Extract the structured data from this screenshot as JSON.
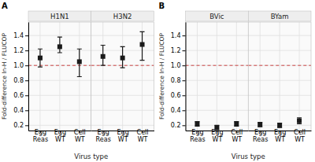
{
  "chart_data": [
    {
      "type": "point",
      "title": "H1N1",
      "categories": [
        "Egg\nReas",
        "Egg\nWT",
        "Cell\nWT"
      ],
      "values": [
        1.1,
        1.25,
        1.05
      ],
      "ci_low": [
        0.98,
        1.17,
        0.85
      ],
      "ci_high": [
        1.22,
        1.38,
        1.22
      ],
      "color": "#1a1a1a",
      "marker": "square",
      "ylim": [
        0.13,
        1.58
      ],
      "yticks": [
        0.2,
        0.4,
        0.6,
        0.8,
        {
          "value": 1.0,
          "label": "1.0"
        },
        1.2,
        1.4
      ],
      "grid": true,
      "ylabel": "Fold-difference In-H / FLUCOP",
      "xlabel": "Virus type",
      "annotations": [
        {
          "text": "A"
        }
      ],
      "reference_line": {
        "value": 1.0,
        "color": "#cc4444",
        "line_style": "dashed"
      }
    },
    {
      "type": "point",
      "title": "H3N2",
      "categories": [
        "Egg\nReas",
        "Egg\nWT",
        "Cell\nWT"
      ],
      "values": [
        1.12,
        1.1,
        1.28
      ],
      "ci_low": [
        1.0,
        0.97,
        1.07
      ],
      "ci_high": [
        1.27,
        1.25,
        1.45
      ],
      "color": "#1a1a1a",
      "marker": "square",
      "ylim": [
        0.13,
        1.58
      ],
      "yticks": [
        0.2,
        0.4,
        0.6,
        0.8,
        {
          "value": 1.0,
          "label": "1.0"
        },
        1.2,
        1.4
      ],
      "grid": true,
      "tick_labels": "x",
      "reference_line": {
        "value": 1.0,
        "color": "#cc4444",
        "line_style": "dashed"
      }
    },
    {
      "type": "point",
      "title": "BVic",
      "categories": [
        "Egg\nReas",
        "Egg\nWT",
        "Cell\nWT"
      ],
      "values": [
        0.22,
        0.17,
        0.22
      ],
      "ci_low": [
        0.19,
        0.14,
        0.19
      ],
      "ci_high": [
        0.25,
        0.2,
        0.25
      ],
      "color": "#1a1a1a",
      "marker": "square",
      "ylim": [
        0.13,
        1.58
      ],
      "yticks": [
        0.2,
        0.4,
        0.6,
        0.8,
        {
          "value": 1.0,
          "label": "1.0"
        },
        1.2,
        1.4
      ],
      "grid": true,
      "ylabel": "Fold-difference In-H / FLUCOP",
      "xlabel": "Virus type",
      "annotations": [
        {
          "text": "B"
        }
      ],
      "reference_line": {
        "value": 1.0,
        "color": "#cc4444",
        "line_style": "dashed"
      }
    },
    {
      "type": "point",
      "title": "BYam",
      "categories": [
        "Egg\nReas",
        "Egg\nWT",
        "Cell\nWT"
      ],
      "values": [
        0.21,
        0.2,
        0.26
      ],
      "ci_low": [
        0.18,
        0.17,
        0.22
      ],
      "ci_high": [
        0.24,
        0.23,
        0.3
      ],
      "color": "#1a1a1a",
      "marker": "square",
      "ylim": [
        0.13,
        1.58
      ],
      "yticks": [
        0.2,
        0.4,
        0.6,
        0.8,
        {
          "value": 1.0,
          "label": "1.0"
        },
        1.2,
        1.4
      ],
      "grid": true,
      "tick_labels": "x",
      "reference_line": {
        "value": 1.0,
        "color": "#cc4444",
        "line_style": "dashed"
      }
    }
  ]
}
